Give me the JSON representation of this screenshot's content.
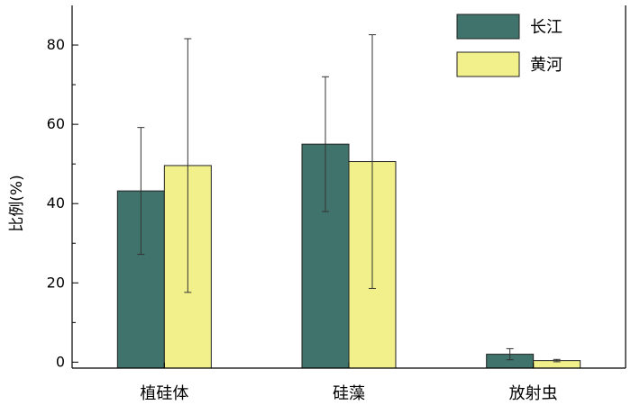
{
  "chart_data": {
    "type": "bar",
    "categories": [
      "植硅体",
      "硅藻",
      "放射虫"
    ],
    "series": [
      {
        "name": "长江",
        "values": [
          43.2,
          55.0,
          2.0
        ],
        "errors": [
          16.0,
          17.0,
          1.4
        ],
        "color": "#3f736b"
      },
      {
        "name": "黄河",
        "values": [
          49.6,
          50.6,
          0.4
        ],
        "errors": [
          32.0,
          32.0,
          0.3
        ],
        "color": "#f2f08b"
      }
    ],
    "xlabel": "",
    "ylabel": "比例(%)",
    "ylim": [
      -1.5,
      90
    ],
    "yticks": [
      0,
      20,
      40,
      60,
      80
    ],
    "grid": false,
    "legend_position": "top-right"
  }
}
